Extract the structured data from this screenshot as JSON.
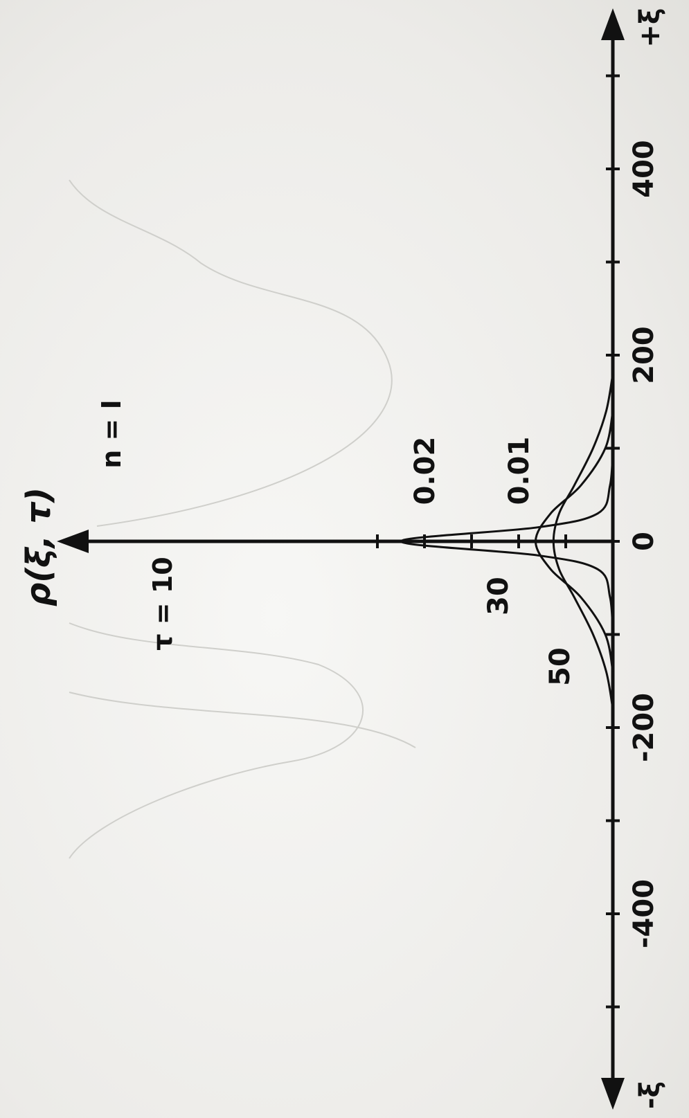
{
  "chart_data": {
    "type": "line",
    "orientation": "rotated-90-clockwise",
    "ylabel": "ρ(ξ, τ)",
    "xlabel_positive": "+ξ",
    "xlabel_negative": "-ξ",
    "annotation_n": "n = I",
    "x_ticks": [
      {
        "value": -400,
        "label": "-400"
      },
      {
        "value": -200,
        "label": "-200"
      },
      {
        "value": 0,
        "label": "0"
      },
      {
        "value": 200,
        "label": "200"
      },
      {
        "value": 400,
        "label": "400"
      }
    ],
    "y_ticks": [
      {
        "value": 0.01,
        "label": "0.01"
      },
      {
        "value": 0.02,
        "label": "0.02"
      }
    ],
    "xlim": [
      -500,
      500
    ],
    "ylim": [
      0,
      0.026
    ],
    "series": [
      {
        "name": "τ = 10",
        "x": [
          -100,
          -60,
          -30,
          -15,
          0,
          15,
          30,
          60,
          100
        ],
        "y": [
          0,
          0.0003,
          0.0016,
          0.008,
          0.0225,
          0.008,
          0.0016,
          0.0003,
          0
        ]
      },
      {
        "name": "30",
        "x": [
          -140,
          -100,
          -60,
          -30,
          0,
          30,
          60,
          100,
          140
        ],
        "y": [
          0,
          0.0008,
          0.0034,
          0.0066,
          0.0082,
          0.0066,
          0.0034,
          0.0008,
          0
        ]
      },
      {
        "name": "50",
        "x": [
          -180,
          -140,
          -100,
          -60,
          -30,
          0,
          30,
          60,
          100,
          140,
          180
        ],
        "y": [
          0,
          0.0007,
          0.0021,
          0.0041,
          0.0057,
          0.0063,
          0.0057,
          0.0041,
          0.0021,
          0.0007,
          0
        ]
      }
    ]
  }
}
